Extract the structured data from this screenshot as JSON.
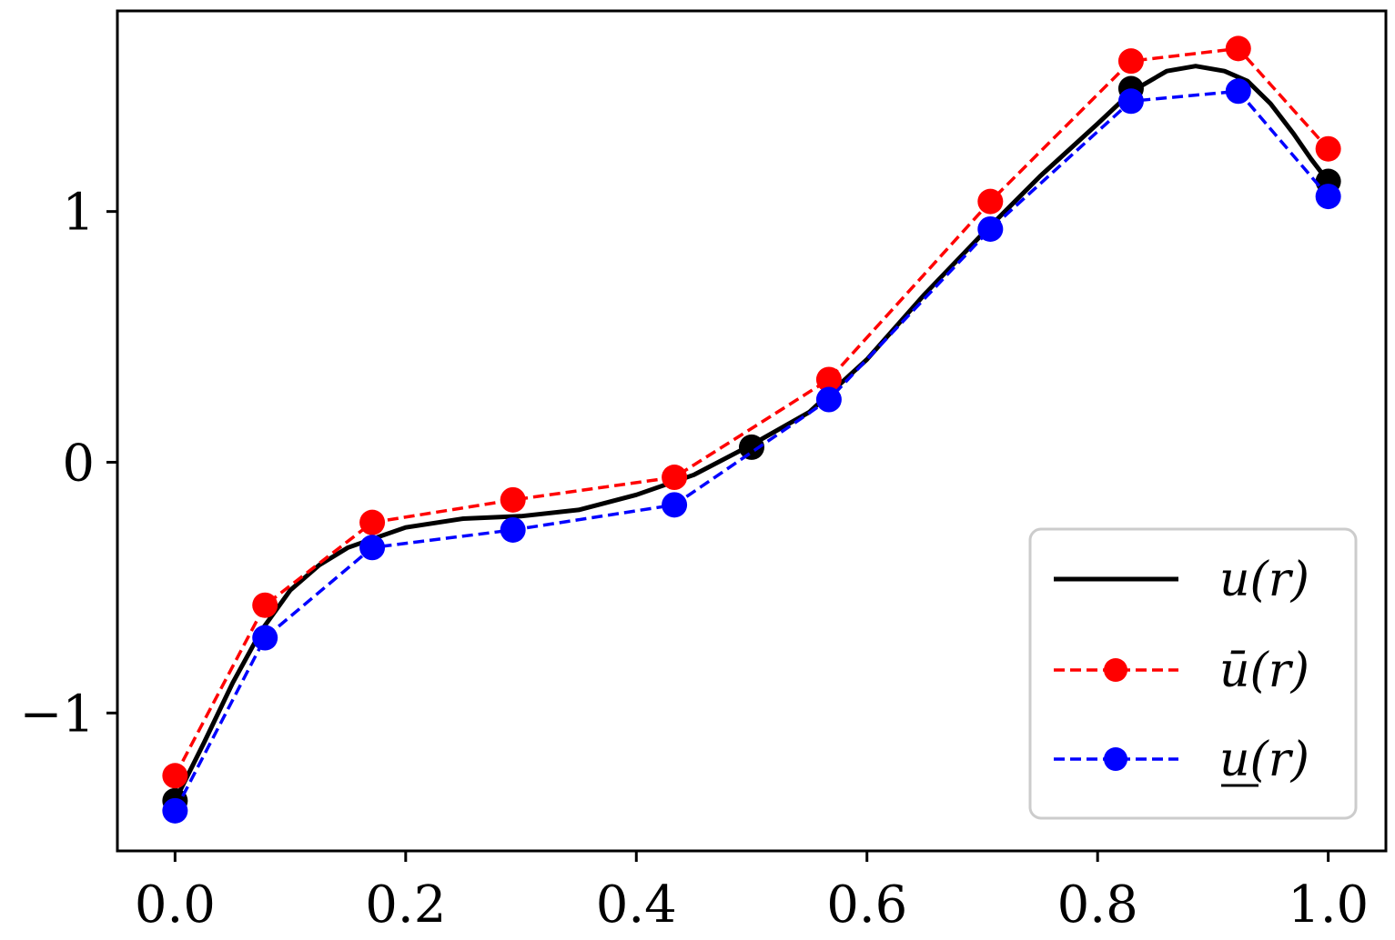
{
  "chart_data": {
    "type": "line",
    "title": "",
    "xlabel": "",
    "ylabel": "",
    "xlim": [
      -0.05,
      1.05
    ],
    "ylim": [
      -1.55,
      1.8
    ],
    "x_ticks": [
      {
        "value": 0.0,
        "label": "0.0"
      },
      {
        "value": 0.2,
        "label": "0.2"
      },
      {
        "value": 0.4,
        "label": "0.4"
      },
      {
        "value": 0.6,
        "label": "0.6"
      },
      {
        "value": 0.8,
        "label": "0.8"
      },
      {
        "value": 1.0,
        "label": "1.0"
      }
    ],
    "y_ticks": [
      {
        "value": -1,
        "label": "−1"
      },
      {
        "value": 0,
        "label": "0"
      },
      {
        "value": 1,
        "label": "1"
      }
    ],
    "grid": false,
    "legend_position": "bottom-right",
    "series": [
      {
        "name": "u(r)",
        "color": "#000000",
        "style": "solid",
        "curve_x": [
          0.0,
          0.025,
          0.05,
          0.075,
          0.1,
          0.125,
          0.15,
          0.175,
          0.2,
          0.25,
          0.3,
          0.35,
          0.4,
          0.45,
          0.5,
          0.55,
          0.6,
          0.65,
          0.7,
          0.75,
          0.8,
          0.83,
          0.86,
          0.885,
          0.91,
          0.93,
          0.95,
          0.97,
          0.985,
          1.0
        ],
        "curve_y": [
          -1.35,
          -1.12,
          -0.88,
          -0.67,
          -0.51,
          -0.41,
          -0.34,
          -0.3,
          -0.26,
          -0.225,
          -0.215,
          -0.19,
          -0.13,
          -0.05,
          0.07,
          0.2,
          0.41,
          0.67,
          0.91,
          1.14,
          1.35,
          1.48,
          1.56,
          1.58,
          1.56,
          1.52,
          1.43,
          1.31,
          1.21,
          1.12
        ],
        "marker_x": [
          0.0,
          0.5,
          0.829,
          1.0
        ],
        "marker_y": [
          -1.35,
          0.06,
          1.49,
          1.12
        ]
      },
      {
        "name": "ū(r)",
        "color": "#ff0000",
        "style": "dashed",
        "x": [
          0.0,
          0.078,
          0.171,
          0.293,
          0.433,
          0.567,
          0.707,
          0.829,
          0.922,
          1.0
        ],
        "y": [
          -1.25,
          -0.57,
          -0.24,
          -0.15,
          -0.06,
          0.33,
          1.04,
          1.6,
          1.65,
          1.25
        ]
      },
      {
        "name": "u(r)",
        "color": "#0000ff",
        "style": "dashed",
        "underline": true,
        "x": [
          0.0,
          0.078,
          0.171,
          0.293,
          0.433,
          0.567,
          0.707,
          0.829,
          0.922,
          1.0
        ],
        "y": [
          -1.39,
          -0.7,
          -0.34,
          -0.27,
          -0.17,
          0.25,
          0.93,
          1.44,
          1.48,
          1.06
        ]
      }
    ]
  }
}
